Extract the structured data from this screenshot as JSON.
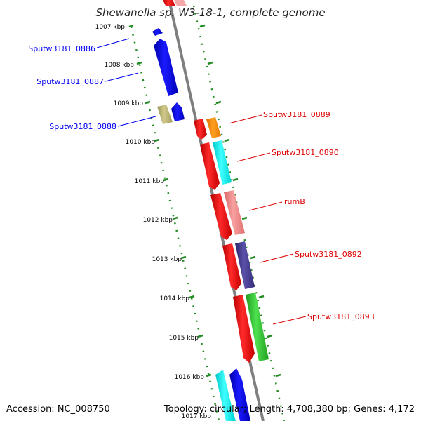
{
  "title": "Shewanella sp. W3-18-1, complete genome",
  "footer": {
    "accession": "Accession: NC_008750",
    "topology": "Topology: circular; Length: 4,708,380 bp; Genes: 4,172"
  },
  "kbp_labels": [
    "1007 kbp",
    "1008 kbp",
    "1009 kbp",
    "1010 kbp",
    "1011 kbp",
    "1012 kbp",
    "1013 kbp",
    "1014 kbp",
    "1015 kbp",
    "1016 kbp",
    "1017 kbp"
  ],
  "genes_minus": [
    {
      "label": "Sputw3181_0886",
      "color": "#0000ee"
    },
    {
      "label": "Sputw3181_0887",
      "color": "#0000ee"
    },
    {
      "label": "Sputw3181_0888",
      "color": "#0000ee"
    }
  ],
  "genes_plus": [
    {
      "label": "Sputw3181_0889",
      "color": "#dd0000"
    },
    {
      "label": "Sputw3181_0890",
      "color": "#dd0000"
    },
    {
      "label": "rumB",
      "color": "#dd0000"
    },
    {
      "label": "Sputw3181_0892",
      "color": "#dd0000"
    },
    {
      "label": "Sputw3181_0893",
      "color": "#dd0000"
    }
  ],
  "colors": {
    "backbone": "#808080",
    "tick_green": "#228b22",
    "forward_cds": "#ff0000",
    "reverse_cds": "#0000ee",
    "orange": "#ff8c00",
    "cyan": "#00ffff",
    "salmon": "#f08080",
    "slate": "#483d8b",
    "green": "#32cd32",
    "khaki": "#bdb76b"
  }
}
